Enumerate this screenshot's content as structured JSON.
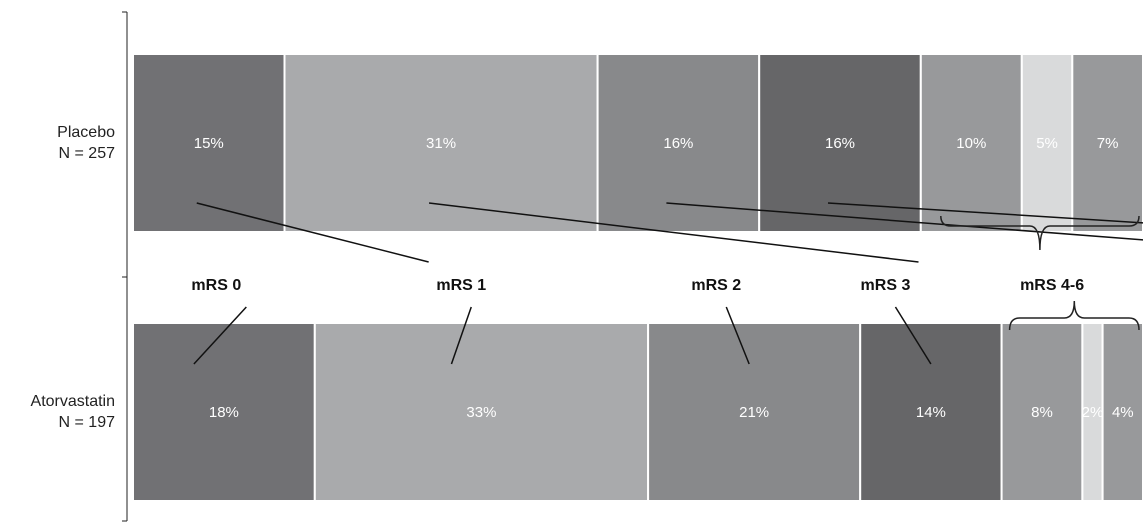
{
  "chart_data": {
    "type": "bar",
    "orientation": "horizontal",
    "stacked": true,
    "normalized": true,
    "title": "",
    "xlabel": "",
    "ylabel": "",
    "xlim": [
      0,
      100
    ],
    "grid": false,
    "legend": "none",
    "categories": [
      {
        "name": "Placebo",
        "subtitle": "N = 257"
      },
      {
        "name": "Atorvastatin",
        "subtitle": "N = 197"
      }
    ],
    "series": [
      {
        "name": "mRS 0",
        "color": "#717174",
        "values": [
          15,
          18
        ],
        "labels": [
          "15%",
          "18%"
        ]
      },
      {
        "name": "mRS 1",
        "color": "#a9aaac",
        "values": [
          31,
          33
        ],
        "labels": [
          "31%",
          "33%"
        ]
      },
      {
        "name": "mRS 2",
        "color": "#88898b",
        "values": [
          16,
          21
        ],
        "labels": [
          "16%",
          "21%"
        ]
      },
      {
        "name": "mRS 3",
        "color": "#666668",
        "values": [
          16,
          14
        ],
        "labels": [
          "16%",
          "14%"
        ]
      },
      {
        "name": "mRS 4",
        "color": "#98999b",
        "values": [
          10,
          8
        ],
        "labels": [
          "10%",
          "8%"
        ]
      },
      {
        "name": "mRS 5",
        "color": "#d9dadb",
        "values": [
          5,
          2
        ],
        "labels": [
          "5%",
          "2%"
        ]
      },
      {
        "name": "mRS 6",
        "color": "#98999b",
        "values": [
          7,
          4
        ],
        "labels": [
          "7%",
          "4%"
        ]
      }
    ],
    "annotations": [
      {
        "text": "mRS 0",
        "series": [
          0
        ]
      },
      {
        "text": "mRS 1",
        "series": [
          1
        ]
      },
      {
        "text": "mRS 2",
        "series": [
          2
        ]
      },
      {
        "text": "mRS 3",
        "series": [
          3
        ]
      },
      {
        "text": "mRS 4-6",
        "series": [
          4,
          5,
          6
        ],
        "bracket": true
      }
    ]
  }
}
